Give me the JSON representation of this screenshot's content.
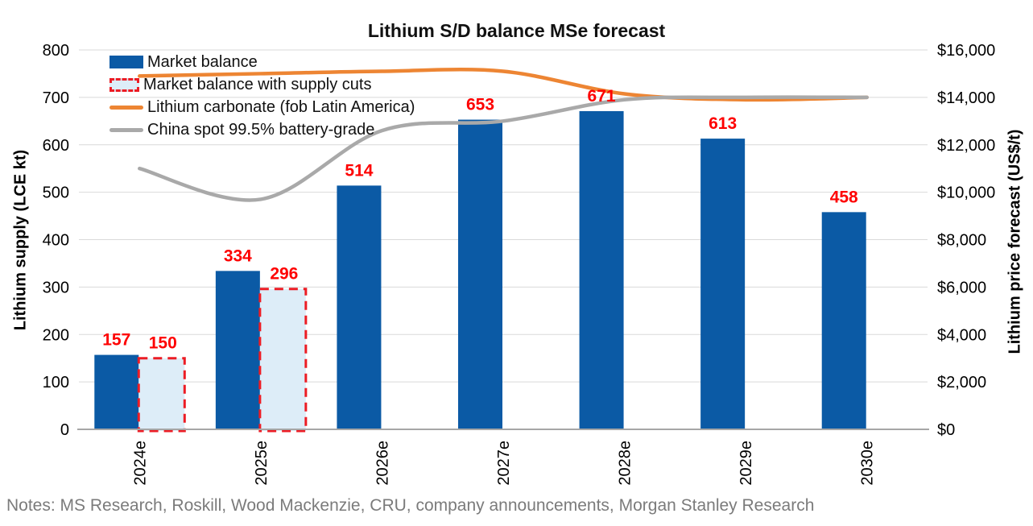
{
  "title": "Lithium S/D balance MSe forecast",
  "notes": "Notes: MS Research, Roskill, Wood Mackenzie, CRU, company announcements, Morgan Stanley Research",
  "legend": {
    "items": [
      {
        "label": "Market balance",
        "swatch": "solid-bar"
      },
      {
        "label": "Market balance with supply cuts",
        "swatch": "dashed-bar"
      },
      {
        "label": "Lithium carbonate (fob Latin America)",
        "swatch": "orange-line"
      },
      {
        "label": "China spot 99.5% battery-grade",
        "swatch": "gray-line"
      }
    ]
  },
  "colors": {
    "bar_solid": "#0b5aa5",
    "bar_cut_fill": "#ddedf8",
    "bar_cut_border": "#ec1c24",
    "data_label": "#fe0000",
    "orange_line": "#ed8533",
    "gray_line": "#a9a9a9",
    "gridline": "#d9d9d9",
    "axis_line": "#a6a6a6",
    "tick_text": "#000000",
    "notes_text": "#7b7b7b"
  },
  "chart_data": {
    "type": "combo bar+line (dual axis)",
    "categories": [
      "2024e",
      "2025e",
      "2026e",
      "2027e",
      "2028e",
      "2029e",
      "2030e"
    ],
    "series": [
      {
        "name": "Market balance",
        "type": "bar",
        "axis": "left",
        "values": [
          157,
          334,
          514,
          653,
          671,
          613,
          458
        ],
        "data_labels": true
      },
      {
        "name": "Market balance with supply cuts",
        "type": "bar",
        "axis": "left",
        "style": "dashed-outline",
        "values": [
          150,
          296,
          null,
          null,
          null,
          null,
          null
        ],
        "data_labels": true
      },
      {
        "name": "Lithium carbonate (fob Latin America)",
        "type": "line",
        "axis": "right",
        "values": [
          14900,
          15000,
          15100,
          15100,
          14150,
          13900,
          14000
        ]
      },
      {
        "name": "China spot 99.5% battery-grade",
        "type": "line",
        "axis": "right",
        "values": [
          11000,
          9700,
          12600,
          13000,
          13900,
          14000,
          14000
        ]
      }
    ],
    "left_axis": {
      "title": "Lithium supply (LCE kt)",
      "min": 0,
      "max": 800,
      "tick_step": 100,
      "tick_labels": [
        "0",
        "100",
        "200",
        "300",
        "400",
        "500",
        "600",
        "700",
        "800"
      ]
    },
    "right_axis": {
      "title": "Lithium price forecast (US$/t)",
      "min": 0,
      "max": 16000,
      "tick_step": 2000,
      "tick_labels": [
        "$0",
        "$2,000",
        "$4,000",
        "$6,000",
        "$8,000",
        "$10,000",
        "$12,000",
        "$14,000",
        "$16,000"
      ]
    },
    "grid": "horizontal",
    "legend_position": "top-left-inside"
  }
}
